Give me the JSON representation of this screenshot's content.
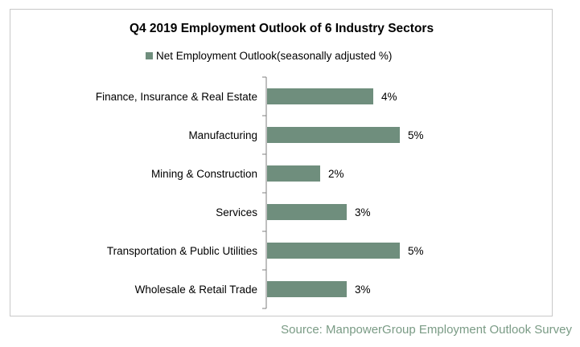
{
  "chart_data": {
    "type": "bar",
    "orientation": "horizontal",
    "title": "Q4 2019 Employment Outlook of 6 Industry Sectors",
    "categories": [
      "Finance, Insurance & Real Estate",
      "Manufacturing",
      "Mining & Construction",
      "Services",
      "Transportation & Public Utilities",
      "Wholesale & Retail Trade"
    ],
    "series": [
      {
        "name": "Net Employment Outlook(seasonally adjusted %)",
        "values": [
          4,
          5,
          2,
          3,
          5,
          3
        ],
        "labels": [
          "4%",
          "5%",
          "2%",
          "3%",
          "5%",
          "3%"
        ],
        "color": "#6f8e7d"
      }
    ],
    "xlim": [
      0,
      5
    ],
    "grid": false,
    "legend_position": "top"
  },
  "source": "Source: ManpowerGroup Employment Outlook Survey"
}
